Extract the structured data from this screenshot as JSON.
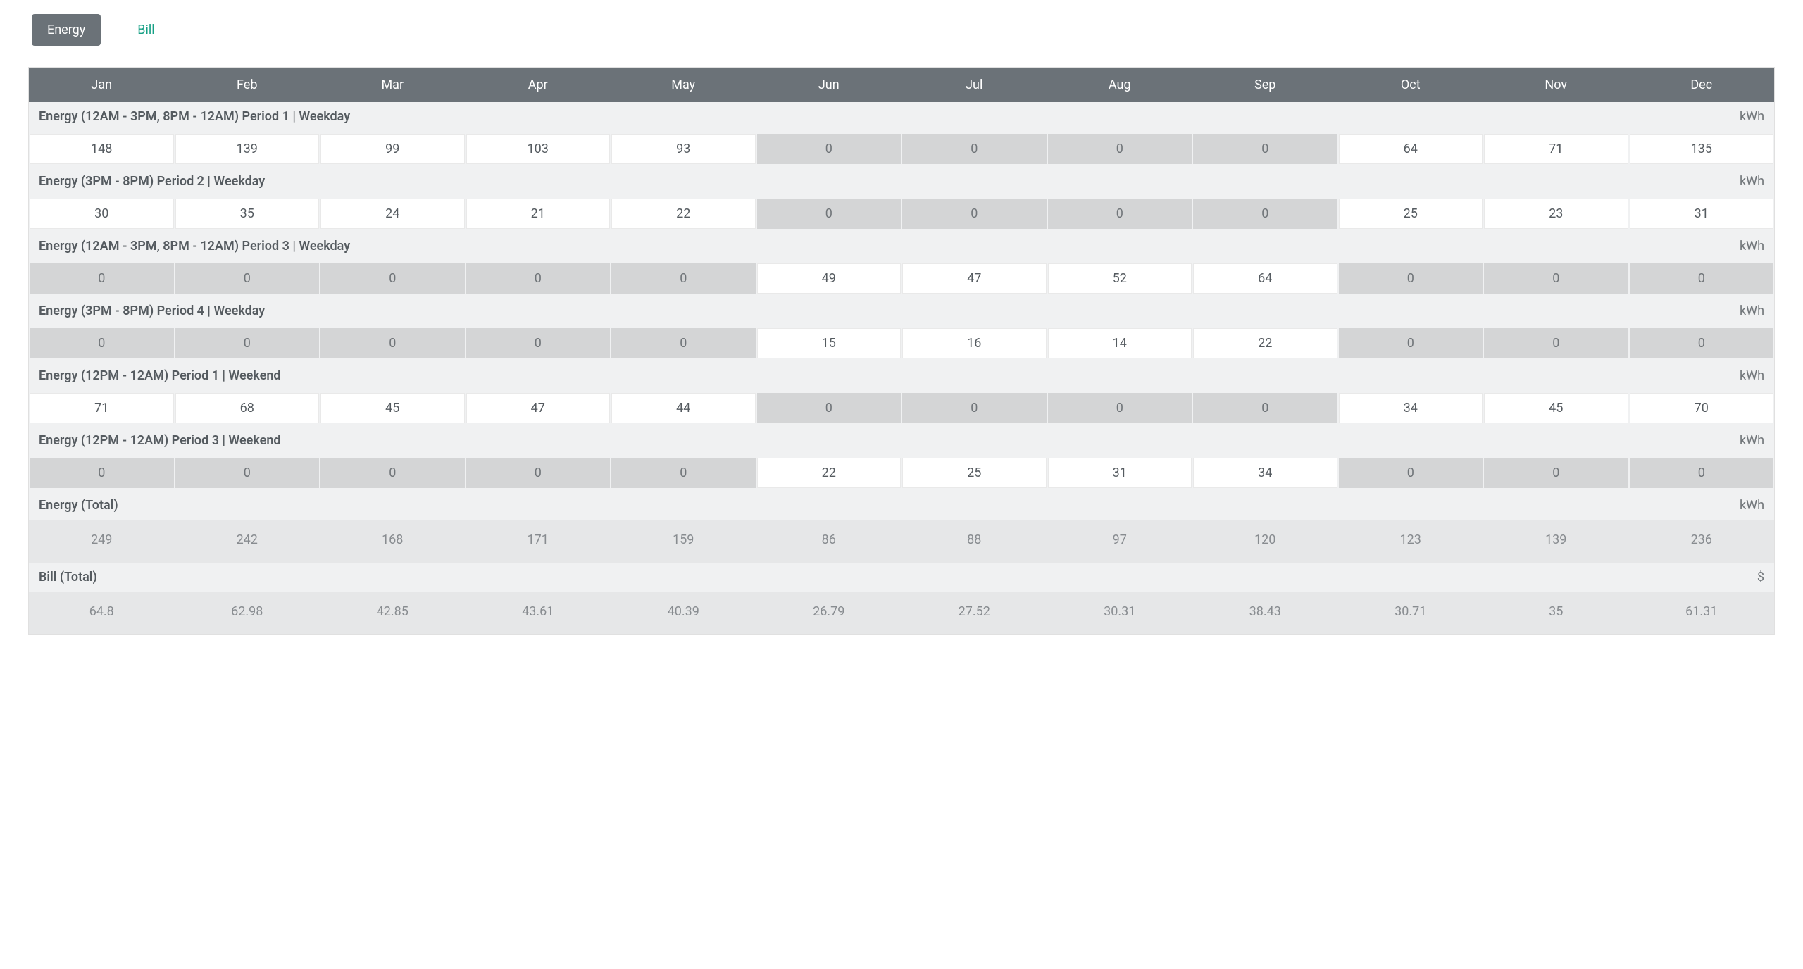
{
  "tabs": {
    "energy": "Energy",
    "bill": "Bill"
  },
  "months": [
    "Jan",
    "Feb",
    "Mar",
    "Apr",
    "May",
    "Jun",
    "Jul",
    "Aug",
    "Sep",
    "Oct",
    "Nov",
    "Dec"
  ],
  "colors": {
    "header_bg": "#6b7278",
    "header_text": "#ffffff",
    "tab_active_bg": "#6b7278",
    "tab_link": "#16a085",
    "section_bg": "#f0f1f2",
    "cell_white_bg": "#ffffff",
    "cell_grey_bg": "#d4d5d6",
    "total_bg": "#e6e7e8",
    "text_main": "#555b60",
    "text_muted": "#888c90"
  },
  "sections": [
    {
      "title": "Energy (12AM - 3PM, 8PM - 12AM) Period 1 | Weekday",
      "unit": "kWh",
      "values": [
        148,
        139,
        99,
        103,
        93,
        0,
        0,
        0,
        0,
        64,
        71,
        135
      ],
      "zero_is_grey": true
    },
    {
      "title": "Energy (3PM - 8PM) Period 2 | Weekday",
      "unit": "kWh",
      "values": [
        30,
        35,
        24,
        21,
        22,
        0,
        0,
        0,
        0,
        25,
        23,
        31
      ],
      "zero_is_grey": true
    },
    {
      "title": "Energy (12AM - 3PM, 8PM - 12AM) Period 3 | Weekday",
      "unit": "kWh",
      "values": [
        0,
        0,
        0,
        0,
        0,
        49,
        47,
        52,
        64,
        0,
        0,
        0
      ],
      "zero_is_grey": true
    },
    {
      "title": "Energy (3PM - 8PM) Period 4 | Weekday",
      "unit": "kWh",
      "values": [
        0,
        0,
        0,
        0,
        0,
        15,
        16,
        14,
        22,
        0,
        0,
        0
      ],
      "zero_is_grey": true
    },
    {
      "title": "Energy (12PM - 12AM)  Period 1 | Weekend",
      "unit": "kWh",
      "values": [
        71,
        68,
        45,
        47,
        44,
        0,
        0,
        0,
        0,
        34,
        45,
        70
      ],
      "zero_is_grey": true
    },
    {
      "title": "Energy (12PM - 12AM)  Period 3 | Weekend",
      "unit": "kWh",
      "values": [
        0,
        0,
        0,
        0,
        0,
        22,
        25,
        31,
        34,
        0,
        0,
        0
      ],
      "zero_is_grey": true
    },
    {
      "title": "Energy (Total)",
      "unit": "kWh",
      "values": [
        249,
        242,
        168,
        171,
        159,
        86,
        88,
        97,
        120,
        123,
        139,
        236
      ],
      "total": true
    },
    {
      "title": "Bill (Total)",
      "unit": "$",
      "values": [
        64.8,
        62.98,
        42.85,
        43.61,
        40.39,
        26.79,
        27.52,
        30.31,
        38.43,
        30.71,
        35,
        61.31
      ],
      "total": true
    }
  ]
}
